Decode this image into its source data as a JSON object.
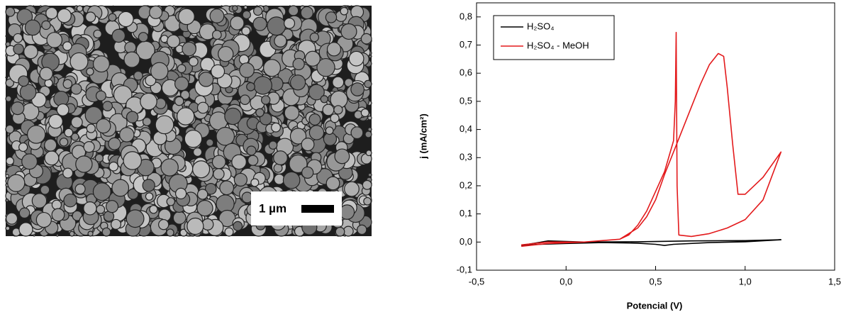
{
  "image": {
    "scale_bar": "1 µm"
  },
  "chart_data": {
    "type": "line",
    "x_label": "Potencial (V)",
    "y_label": "j (mA/cm²)",
    "xlim": [
      -0.5,
      1.5
    ],
    "ylim": [
      -0.1,
      0.85
    ],
    "xticks": [
      {
        "value": -0.5,
        "label": "-0,5"
      },
      {
        "value": 0,
        "label": "0,0"
      },
      {
        "value": 0.5,
        "label": "0,5"
      },
      {
        "value": 1,
        "label": "1,0"
      },
      {
        "value": 1.5,
        "label": "1,5"
      }
    ],
    "yticks": [
      {
        "value": -0.1,
        "label": "-0,1"
      },
      {
        "value": 0,
        "label": "0,0"
      },
      {
        "value": 0.1,
        "label": "0,1"
      },
      {
        "value": 0.2,
        "label": "0,2"
      },
      {
        "value": 0.3,
        "label": "0,3"
      },
      {
        "value": 0.4,
        "label": "0,4"
      },
      {
        "value": 0.5,
        "label": "0,5"
      },
      {
        "value": 0.6,
        "label": "0,6"
      },
      {
        "value": 0.7,
        "label": "0,7"
      },
      {
        "value": 0.8,
        "label": "0,8"
      }
    ],
    "legend": "upper left",
    "series": [
      {
        "name": "H₂SO₄",
        "color": "#000000",
        "x": [
          -0.25,
          -0.15,
          0.0,
          0.2,
          0.4,
          0.5,
          0.55,
          0.6,
          0.8,
          1.0,
          1.2,
          1.0,
          0.7,
          0.4,
          0.1,
          -0.1,
          -0.25
        ],
        "values": [
          -0.012,
          -0.008,
          -0.005,
          -0.002,
          -0.004,
          -0.008,
          -0.012,
          -0.008,
          -0.002,
          0.001,
          0.008,
          0.005,
          0.004,
          0.001,
          0.0,
          0.004,
          -0.012
        ]
      },
      {
        "name": "H₂SO₄ - MeOH",
        "color": "#e31a1c",
        "x": [
          -0.25,
          -0.1,
          0.1,
          0.3,
          0.4,
          0.45,
          0.5,
          0.55,
          0.6,
          0.65,
          0.7,
          0.75,
          0.8,
          0.85,
          0.88,
          0.9,
          0.93,
          0.96,
          1.0,
          1.1,
          1.2,
          1.1,
          1.0,
          0.9,
          0.8,
          0.7,
          0.63,
          0.62,
          0.615,
          0.61,
          0.6,
          0.55,
          0.5,
          0.45,
          0.4,
          0.35,
          0.3,
          0.1,
          -0.1,
          -0.25
        ],
        "values": [
          -0.015,
          -0.005,
          0.0,
          0.01,
          0.05,
          0.09,
          0.15,
          0.24,
          0.32,
          0.4,
          0.48,
          0.56,
          0.63,
          0.67,
          0.66,
          0.55,
          0.35,
          0.17,
          0.17,
          0.23,
          0.32,
          0.15,
          0.08,
          0.05,
          0.03,
          0.02,
          0.025,
          0.2,
          0.745,
          0.5,
          0.36,
          0.25,
          0.18,
          0.11,
          0.06,
          0.025,
          0.01,
          0.0,
          0.0,
          -0.01
        ]
      }
    ]
  }
}
